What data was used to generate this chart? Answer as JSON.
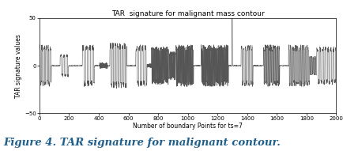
{
  "title": "TAR  signature for malignant mass contour",
  "xlabel": "Number of boundary Points for ts=7",
  "ylabel": "TAR signature values",
  "xlim": [
    0,
    2000
  ],
  "ylim": [
    -50,
    50
  ],
  "xticks": [
    0,
    200,
    400,
    600,
    800,
    1000,
    1200,
    1400,
    1600,
    1800,
    2000
  ],
  "yticks": [
    -50,
    0,
    50
  ],
  "title_fontsize": 6.5,
  "label_fontsize": 5.5,
  "tick_fontsize": 5,
  "caption": "Figure 4. TAR signature for malignant contour.",
  "caption_fontsize": 9.5,
  "line_color": "#555555",
  "bg_color": "#ffffff",
  "n_points": 2000,
  "spike_at": 1300,
  "spike_value": 50,
  "caption_color": "#1f5f8b"
}
